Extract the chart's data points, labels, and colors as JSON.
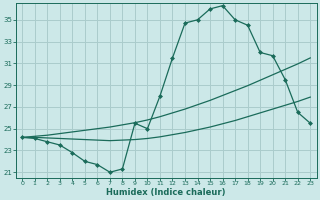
{
  "xlabel": "Humidex (Indice chaleur)",
  "ylabel": "",
  "background_color": "#cce8e8",
  "grid_color": "#aacccc",
  "line_color": "#1a6b5a",
  "xlim": [
    -0.5,
    23.5
  ],
  "ylim": [
    20.5,
    36.5
  ],
  "xticks": [
    0,
    1,
    2,
    3,
    4,
    5,
    6,
    7,
    8,
    9,
    10,
    11,
    12,
    13,
    14,
    15,
    16,
    17,
    18,
    19,
    20,
    21,
    22,
    23
  ],
  "yticks": [
    21,
    23,
    25,
    27,
    29,
    31,
    33,
    35
  ],
  "line1_x": [
    0,
    1,
    2,
    3,
    4,
    5,
    6,
    7,
    8,
    9,
    10,
    11,
    12,
    13,
    14,
    15,
    16,
    17,
    18,
    19,
    20,
    21,
    22,
    23
  ],
  "line1_y": [
    24.2,
    24.1,
    23.8,
    23.5,
    22.8,
    22.0,
    21.7,
    21.0,
    21.3,
    25.5,
    25.0,
    28.0,
    31.5,
    34.7,
    35.0,
    36.0,
    36.3,
    35.0,
    34.5,
    32.0,
    31.7,
    29.5,
    26.5,
    25.5
  ],
  "line2_x": [
    0,
    1,
    2,
    3,
    4,
    5,
    6,
    7,
    8,
    9,
    10,
    11,
    12,
    13,
    14,
    15,
    16,
    17,
    18,
    19,
    20,
    21,
    22,
    23
  ],
  "line2_y": [
    24.2,
    24.2,
    24.15,
    24.1,
    24.05,
    24.0,
    23.95,
    23.9,
    23.95,
    24.0,
    24.1,
    24.25,
    24.45,
    24.65,
    24.9,
    25.15,
    25.45,
    25.75,
    26.1,
    26.45,
    26.8,
    27.15,
    27.5,
    27.9
  ],
  "line3_x": [
    0,
    1,
    2,
    3,
    4,
    5,
    6,
    7,
    8,
    9,
    10,
    11,
    12,
    13,
    14,
    15,
    16,
    17,
    18,
    19,
    20,
    21,
    22,
    23
  ],
  "line3_y": [
    24.2,
    24.3,
    24.4,
    24.55,
    24.7,
    24.85,
    25.0,
    25.15,
    25.35,
    25.55,
    25.8,
    26.1,
    26.45,
    26.8,
    27.2,
    27.6,
    28.05,
    28.5,
    28.95,
    29.45,
    29.95,
    30.45,
    30.95,
    31.5
  ]
}
